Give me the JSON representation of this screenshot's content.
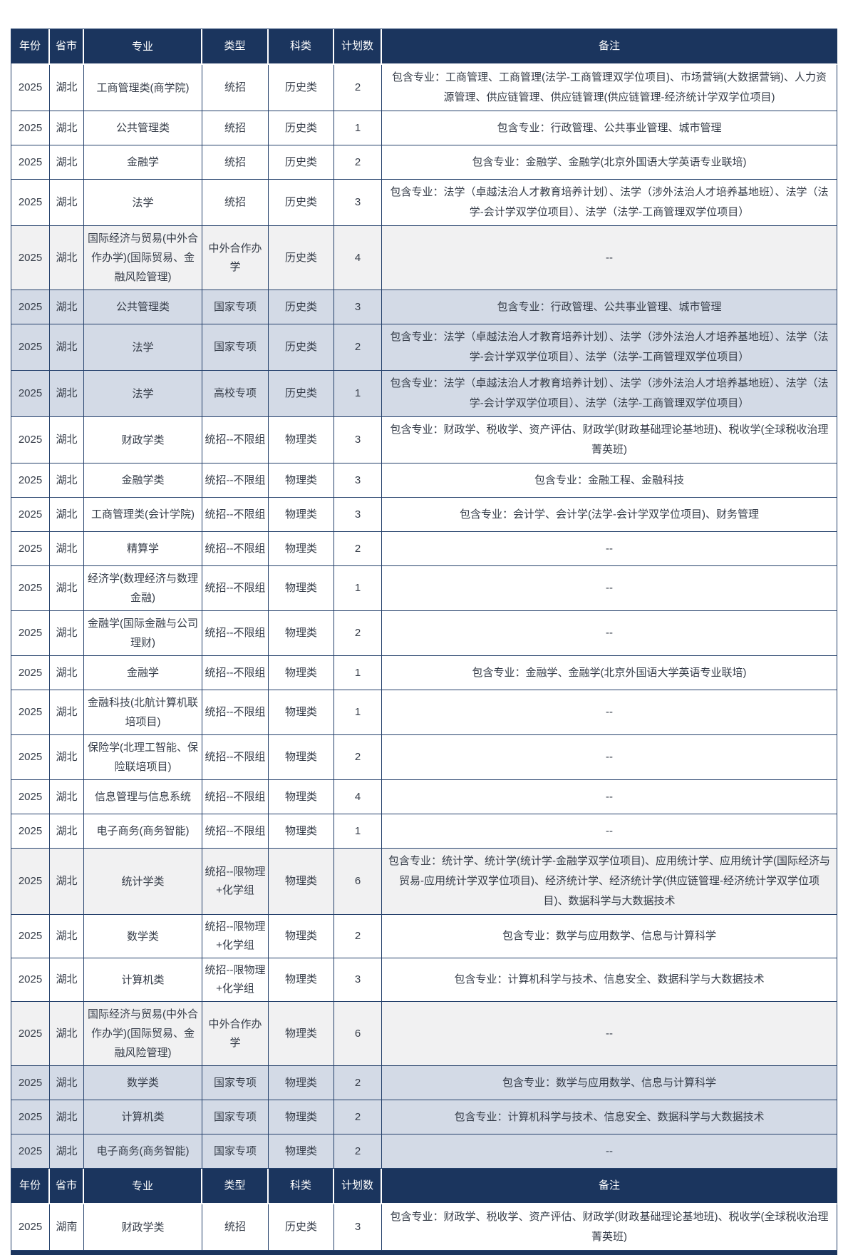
{
  "palette": {
    "header_bg": "#1b355e",
    "header_text": "#ffffff",
    "grid_border": "#24406b",
    "body_text": "#363d49",
    "row_white": "#ffffff",
    "row_gray": "#f1f1f2",
    "row_blue": "#d3dae6"
  },
  "table": {
    "columns": [
      "年份",
      "省市",
      "专业",
      "类型",
      "科类",
      "计划数",
      "备注"
    ],
    "rows": [
      {
        "year": "2025",
        "province": "湖北",
        "major": "工商管理类(商学院)",
        "type": "统招",
        "subject": "历史类",
        "count": "2",
        "remark": "包含专业：工商管理、工商管理(法学-工商管理双学位项目)、市场营销(大数据营销)、人力资源管理、供应链管理、供应链管理(供应链管理-经济统计学双学位项目)",
        "bg": "white"
      },
      {
        "year": "2025",
        "province": "湖北",
        "major": "公共管理类",
        "type": "统招",
        "subject": "历史类",
        "count": "1",
        "remark": "包含专业：行政管理、公共事业管理、城市管理",
        "bg": "white"
      },
      {
        "year": "2025",
        "province": "湖北",
        "major": "金融学",
        "type": "统招",
        "subject": "历史类",
        "count": "2",
        "remark": "包含专业：金融学、金融学(北京外国语大学英语专业联培)",
        "bg": "white"
      },
      {
        "year": "2025",
        "province": "湖北",
        "major": "法学",
        "type": "统招",
        "subject": "历史类",
        "count": "3",
        "remark": "包含专业：法学（卓越法治人才教育培养计划）、法学（涉外法治人才培养基地班）、法学（法学-会计学双学位项目）、法学（法学-工商管理双学位项目）",
        "bg": "white"
      },
      {
        "year": "2025",
        "province": "湖北",
        "major": "国际经济与贸易(中外合作办学)(国际贸易、金融风险管理)",
        "type": "中外合作办学",
        "subject": "历史类",
        "count": "4",
        "remark": "--",
        "bg": "gray"
      },
      {
        "year": "2025",
        "province": "湖北",
        "major": "公共管理类",
        "type": "国家专项",
        "subject": "历史类",
        "count": "3",
        "remark": "包含专业：行政管理、公共事业管理、城市管理",
        "bg": "blue"
      },
      {
        "year": "2025",
        "province": "湖北",
        "major": "法学",
        "type": "国家专项",
        "subject": "历史类",
        "count": "2",
        "remark": "包含专业：法学（卓越法治人才教育培养计划）、法学（涉外法治人才培养基地班）、法学（法学-会计学双学位项目）、法学（法学-工商管理双学位项目）",
        "bg": "blue"
      },
      {
        "year": "2025",
        "province": "湖北",
        "major": "法学",
        "type": "高校专项",
        "subject": "历史类",
        "count": "1",
        "remark": "包含专业：法学（卓越法治人才教育培养计划）、法学（涉外法治人才培养基地班）、法学（法学-会计学双学位项目）、法学（法学-工商管理双学位项目）",
        "bg": "blue"
      },
      {
        "year": "2025",
        "province": "湖北",
        "major": "财政学类",
        "type": "统招--不限组",
        "subject": "物理类",
        "count": "3",
        "remark": "包含专业：财政学、税收学、资产评估、财政学(财政基础理论基地班)、税收学(全球税收治理菁英班)",
        "bg": "white"
      },
      {
        "year": "2025",
        "province": "湖北",
        "major": "金融学类",
        "type": "统招--不限组",
        "subject": "物理类",
        "count": "3",
        "remark": "包含专业：金融工程、金融科技",
        "bg": "white"
      },
      {
        "year": "2025",
        "province": "湖北",
        "major": "工商管理类(会计学院)",
        "type": "统招--不限组",
        "subject": "物理类",
        "count": "3",
        "remark": "包含专业：会计学、会计学(法学-会计学双学位项目)、财务管理",
        "bg": "white"
      },
      {
        "year": "2025",
        "province": "湖北",
        "major": "精算学",
        "type": "统招--不限组",
        "subject": "物理类",
        "count": "2",
        "remark": "--",
        "bg": "white"
      },
      {
        "year": "2025",
        "province": "湖北",
        "major": "经济学(数理经济与数理金融)",
        "type": "统招--不限组",
        "subject": "物理类",
        "count": "1",
        "remark": "--",
        "bg": "white"
      },
      {
        "year": "2025",
        "province": "湖北",
        "major": "金融学(国际金融与公司理财)",
        "type": "统招--不限组",
        "subject": "物理类",
        "count": "2",
        "remark": "--",
        "bg": "white"
      },
      {
        "year": "2025",
        "province": "湖北",
        "major": "金融学",
        "type": "统招--不限组",
        "subject": "物理类",
        "count": "1",
        "remark": "包含专业：金融学、金融学(北京外国语大学英语专业联培)",
        "bg": "white"
      },
      {
        "year": "2025",
        "province": "湖北",
        "major": "金融科技(北航计算机联培项目)",
        "type": "统招--不限组",
        "subject": "物理类",
        "count": "1",
        "remark": "--",
        "bg": "white"
      },
      {
        "year": "2025",
        "province": "湖北",
        "major": "保险学(北理工智能、保险联培项目)",
        "type": "统招--不限组",
        "subject": "物理类",
        "count": "2",
        "remark": "--",
        "bg": "white"
      },
      {
        "year": "2025",
        "province": "湖北",
        "major": "信息管理与信息系统",
        "type": "统招--不限组",
        "subject": "物理类",
        "count": "4",
        "remark": "--",
        "bg": "white"
      },
      {
        "year": "2025",
        "province": "湖北",
        "major": "电子商务(商务智能)",
        "type": "统招--不限组",
        "subject": "物理类",
        "count": "1",
        "remark": "--",
        "bg": "white"
      },
      {
        "year": "2025",
        "province": "湖北",
        "major": "统计学类",
        "type": "统招--限物理+化学组",
        "subject": "物理类",
        "count": "6",
        "remark": "包含专业：统计学、统计学(统计学-金融学双学位项目)、应用统计学、应用统计学(国际经济与贸易-应用统计学双学位项目)、经济统计学、经济统计学(供应链管理-经济统计学双学位项目)、数据科学与大数据技术",
        "bg": "gray"
      },
      {
        "year": "2025",
        "province": "湖北",
        "major": "数学类",
        "type": "统招--限物理+化学组",
        "subject": "物理类",
        "count": "2",
        "remark": "包含专业：数学与应用数学、信息与计算科学",
        "bg": "white"
      },
      {
        "year": "2025",
        "province": "湖北",
        "major": "计算机类",
        "type": "统招--限物理+化学组",
        "subject": "物理类",
        "count": "3",
        "remark": "包含专业：计算机科学与技术、信息安全、数据科学与大数据技术",
        "bg": "white"
      },
      {
        "year": "2025",
        "province": "湖北",
        "major": "国际经济与贸易(中外合作办学)(国际贸易、金融风险管理)",
        "type": "中外合作办学",
        "subject": "物理类",
        "count": "6",
        "remark": "--",
        "bg": "gray"
      },
      {
        "year": "2025",
        "province": "湖北",
        "major": "数学类",
        "type": "国家专项",
        "subject": "物理类",
        "count": "2",
        "remark": "包含专业：数学与应用数学、信息与计算科学",
        "bg": "blue"
      },
      {
        "year": "2025",
        "province": "湖北",
        "major": "计算机类",
        "type": "国家专项",
        "subject": "物理类",
        "count": "2",
        "remark": "包含专业：计算机科学与技术、信息安全、数据科学与大数据技术",
        "bg": "blue"
      },
      {
        "year": "2025",
        "province": "湖北",
        "major": "电子商务(商务智能)",
        "type": "国家专项",
        "subject": "物理类",
        "count": "2",
        "remark": "--",
        "bg": "blue"
      },
      {
        "kind": "header"
      },
      {
        "year": "2025",
        "province": "湖南",
        "major": "财政学类",
        "type": "统招",
        "subject": "历史类",
        "count": "3",
        "remark": "包含专业：财政学、税收学、资产评估、财政学(财政基础理论基地班)、税收学(全球税收治理菁英班)",
        "bg": "white"
      }
    ]
  }
}
